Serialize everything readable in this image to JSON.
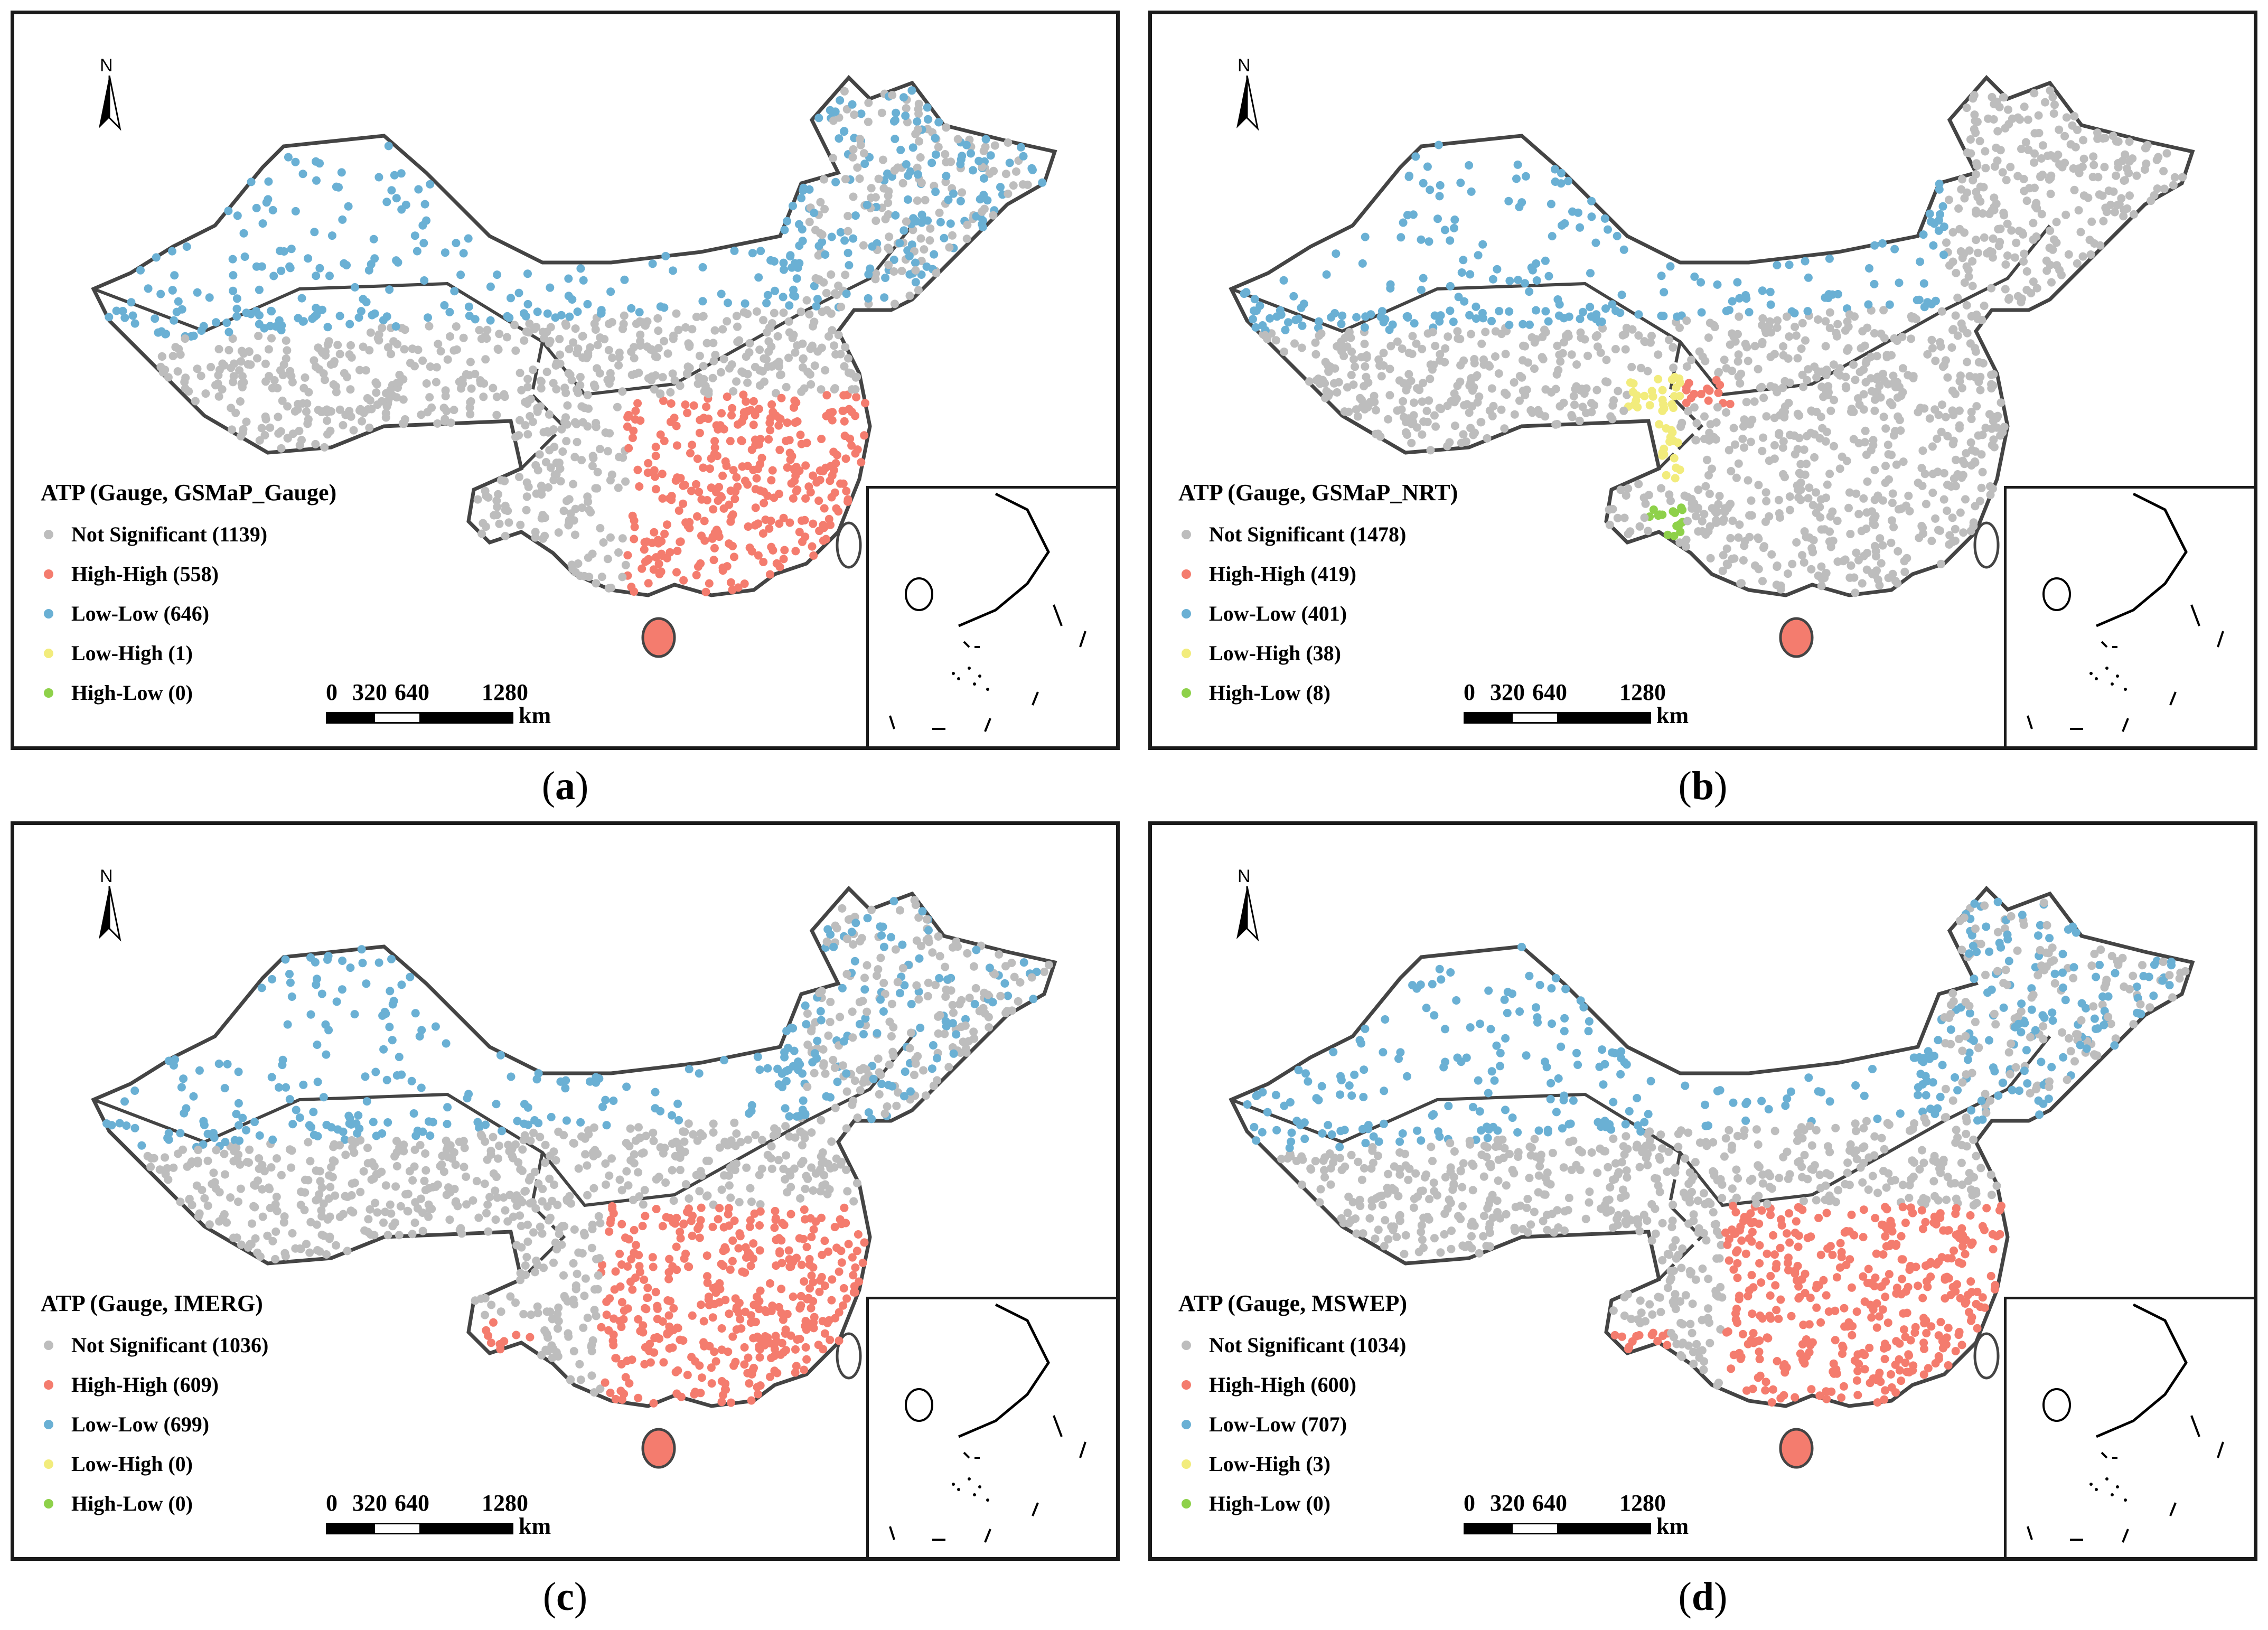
{
  "panels": [
    {
      "caption_letter": "a",
      "legend_title": "ATP (Gauge, GSMaP_Gauge)",
      "legend": [
        {
          "label": "Not Significant (1139)",
          "category": "not-significant",
          "count": 1139
        },
        {
          "label": "High-High (558)",
          "category": "high-high",
          "count": 558
        },
        {
          "label": "Low-Low (646)",
          "category": "low-low",
          "count": 646
        },
        {
          "label": "Low-High (1)",
          "category": "low-high",
          "count": 1
        },
        {
          "label": "High-Low (0)",
          "category": "high-low",
          "count": 0
        }
      ]
    },
    {
      "caption_letter": "b",
      "legend_title": "ATP (Gauge, GSMaP_NRT)",
      "legend": [
        {
          "label": "Not Significant (1478)",
          "category": "not-significant",
          "count": 1478
        },
        {
          "label": "High-High (419)",
          "category": "high-high",
          "count": 419
        },
        {
          "label": "Low-Low (401)",
          "category": "low-low",
          "count": 401
        },
        {
          "label": "Low-High (38)",
          "category": "low-high",
          "count": 38
        },
        {
          "label": "High-Low (8)",
          "category": "high-low",
          "count": 8
        }
      ]
    },
    {
      "caption_letter": "c",
      "legend_title": "ATP (Gauge, IMERG)",
      "legend": [
        {
          "label": "Not Significant (1036)",
          "category": "not-significant",
          "count": 1036
        },
        {
          "label": "High-High (609)",
          "category": "high-high",
          "count": 609
        },
        {
          "label": "Low-Low (699)",
          "category": "low-low",
          "count": 699
        },
        {
          "label": "Low-High (0)",
          "category": "low-high",
          "count": 0
        },
        {
          "label": "High-Low (0)",
          "category": "high-low",
          "count": 0
        }
      ]
    },
    {
      "caption_letter": "d",
      "legend_title": "ATP (Gauge, MSWEP)",
      "legend": [
        {
          "label": "Not Significant (1034)",
          "category": "not-significant",
          "count": 1034
        },
        {
          "label": "High-High (600)",
          "category": "high-high",
          "count": 600
        },
        {
          "label": "Low-Low (707)",
          "category": "low-low",
          "count": 707
        },
        {
          "label": "Low-High (3)",
          "category": "low-high",
          "count": 3
        },
        {
          "label": "High-Low (0)",
          "category": "high-low",
          "count": 0
        }
      ]
    }
  ],
  "north_label": "N",
  "scale": {
    "ticks": [
      "0",
      "320",
      "640",
      "1280"
    ],
    "unit": "km"
  },
  "colors": {
    "not-significant": "#bdbdbd",
    "high-high": "#f47c6e",
    "low-low": "#6ab0d4",
    "low-high": "#f2ec7c",
    "high-low": "#8ed14a",
    "outline": "#444444"
  }
}
